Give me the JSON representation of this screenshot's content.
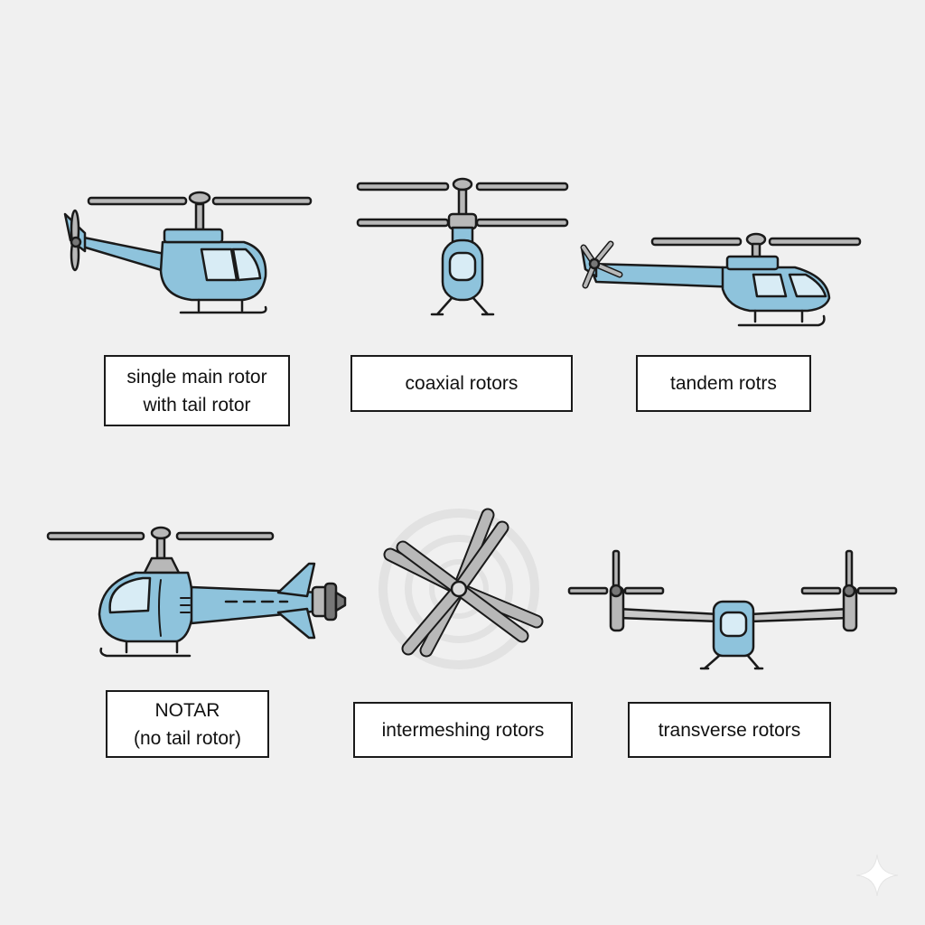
{
  "colors": {
    "background": "#f0f0f0",
    "fuselage": "#8ec3dc",
    "window": "#d8ecf5",
    "rotor_blade": "#b8b8b8",
    "outline": "#1a1a1a"
  },
  "items": [
    {
      "id": "single",
      "icon": "single-main-rotor-helicopter-icon",
      "label": "single main rotor\nwith tail rotor"
    },
    {
      "id": "coaxial",
      "icon": "coaxial-rotor-helicopter-icon",
      "label": "coaxial rotors"
    },
    {
      "id": "tandem",
      "icon": "tandem-rotor-helicopter-icon",
      "label": "tandem rotrs"
    },
    {
      "id": "notar",
      "icon": "notar-helicopter-icon",
      "label": "NOTAR\n(no tail rotor)"
    },
    {
      "id": "intermeshing",
      "icon": "intermeshing-rotors-icon",
      "label": "intermeshing rotors"
    },
    {
      "id": "transverse",
      "icon": "transverse-rotors-icon",
      "label": "transverse rotors"
    }
  ]
}
